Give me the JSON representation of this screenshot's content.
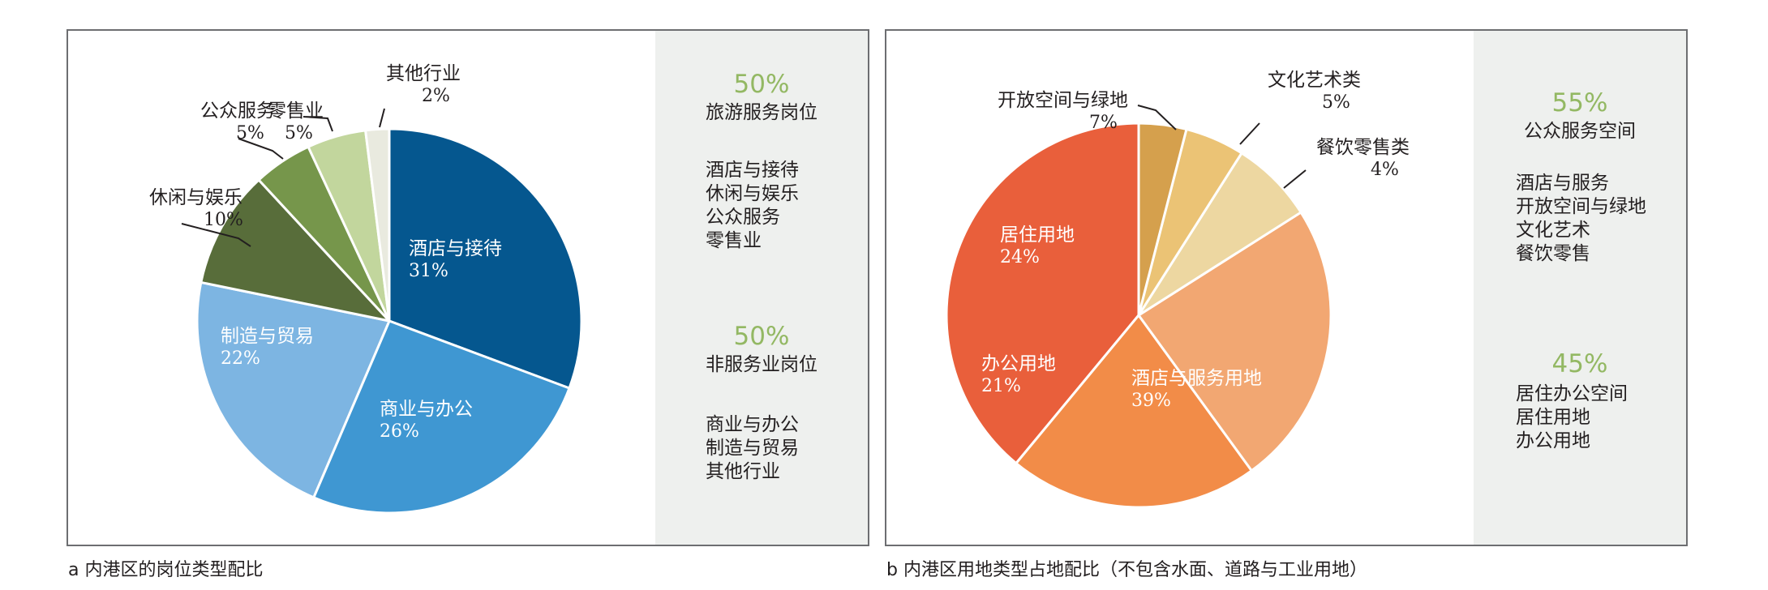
{
  "chart_data": [
    {
      "type": "pie",
      "categories": [
        "酒店与接待",
        "商业与办公",
        "制造与贸易",
        "休闲与娱乐",
        "公众服务",
        "零售业",
        "其他行业"
      ],
      "values": [
        31,
        26,
        22,
        10,
        5,
        5,
        2
      ],
      "value_labels": [
        "31%",
        "26%",
        "22%",
        "10%",
        "5%",
        "5%",
        "2%"
      ],
      "colors": [
        "#05578f",
        "#3f97d2",
        "#7db5e2",
        "#586d3a",
        "#76964b",
        "#c2d69d",
        "#e9eadf"
      ],
      "start_angle_deg": 0,
      "direction": "clockwise",
      "legend": "side-panel",
      "summary": [
        {
          "percent": "50%",
          "name": "旅游服务岗位",
          "items": [
            "酒店与接待",
            "休闲与娱乐",
            "公众服务",
            "零售业"
          ]
        },
        {
          "percent": "50%",
          "name": "非服务业岗位",
          "items": [
            "商业与办公",
            "制造与贸易",
            "其他行业"
          ]
        }
      ],
      "caption": "a  内港区的岗位类型配比"
    },
    {
      "type": "pie",
      "categories": [
        "酒店与服务用地",
        "办公用地",
        "居住用地",
        "开放空间与绿地",
        "文化艺术类",
        "餐饮零售类"
      ],
      "values": [
        39,
        21,
        24,
        7,
        5,
        4
      ],
      "value_labels": [
        "39%",
        "21%",
        "24%",
        "7%",
        "5%",
        "4%"
      ],
      "colors": [
        "#e95f3b",
        "#f28c48",
        "#f2a772",
        "#edd7a1",
        "#ebc375",
        "#d5a04d"
      ],
      "start_angle_deg": 0,
      "direction": "counterclockwise",
      "legend": "side-panel",
      "summary": [
        {
          "percent": "55%",
          "name": "公众服务空间",
          "items": [
            "酒店与服务",
            "开放空间与绿地",
            "文化艺术",
            "餐饮零售"
          ]
        },
        {
          "percent": "45%",
          "name": "居住办公空间",
          "items": [
            "居住用地",
            "办公用地"
          ]
        }
      ],
      "caption": "b  内港区用地类型占地配比（不包含水面、道路与工业用地）"
    }
  ]
}
